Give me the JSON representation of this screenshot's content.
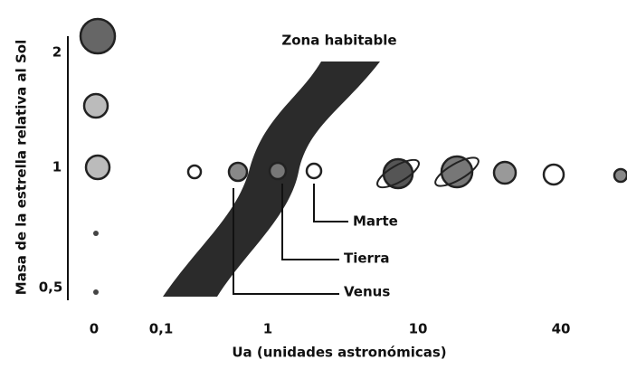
{
  "title": "Zona habitable",
  "y_axis_label": "Masa de la estrella relativa al Sol",
  "x_axis_label": "Ua (unidades astronómicas)",
  "y_ticks": [
    "2",
    "1",
    "0,5"
  ],
  "x_ticks": [
    "0",
    "0,1",
    "1",
    "10",
    "40"
  ],
  "planets": [
    "Marte",
    "Tierra",
    "Venus"
  ]
}
